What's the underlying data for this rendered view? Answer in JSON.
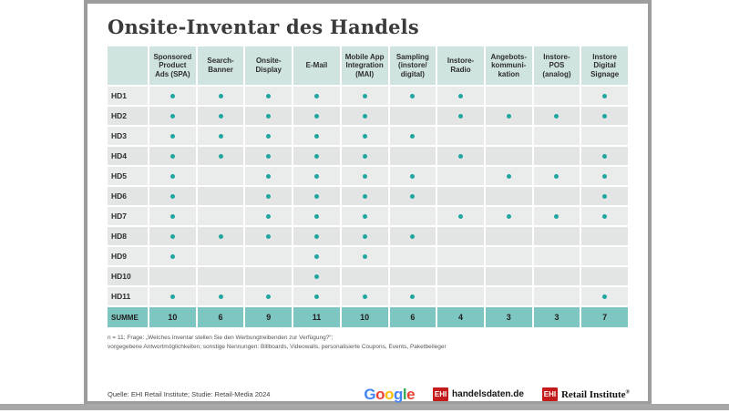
{
  "title": "Onsite-Inventar des Handels",
  "chart_data": {
    "type": "table",
    "title": "Onsite-Inventar des Handels",
    "columns": [
      "Sponsored Product Ads (SPA)",
      "Search-Banner",
      "Onsite-Display",
      "E-Mail",
      "Mobile App Integration (MAI)",
      "Sampling (instore/digital)",
      "Instore-Radio",
      "Angebotskommunikation",
      "Instore-POS (analog)",
      "Instore Digital Signage"
    ],
    "row_labels": [
      "HD1",
      "HD2",
      "HD3",
      "HD4",
      "HD5",
      "HD6",
      "HD7",
      "HD8",
      "HD9",
      "HD10",
      "HD11"
    ],
    "matrix": [
      [
        1,
        1,
        1,
        1,
        1,
        1,
        1,
        0,
        0,
        1
      ],
      [
        1,
        1,
        1,
        1,
        1,
        0,
        1,
        1,
        1,
        1
      ],
      [
        1,
        1,
        1,
        1,
        1,
        1,
        0,
        0,
        0,
        0
      ],
      [
        1,
        1,
        1,
        1,
        1,
        0,
        1,
        0,
        0,
        1
      ],
      [
        1,
        0,
        1,
        1,
        1,
        1,
        0,
        1,
        1,
        1
      ],
      [
        1,
        0,
        1,
        1,
        1,
        1,
        0,
        0,
        0,
        1
      ],
      [
        1,
        0,
        1,
        1,
        1,
        0,
        1,
        1,
        1,
        1
      ],
      [
        1,
        1,
        1,
        1,
        1,
        1,
        0,
        0,
        0,
        0
      ],
      [
        1,
        0,
        0,
        1,
        1,
        0,
        0,
        0,
        0,
        0
      ],
      [
        0,
        0,
        0,
        1,
        0,
        0,
        0,
        0,
        0,
        0
      ],
      [
        1,
        1,
        1,
        1,
        1,
        1,
        0,
        0,
        0,
        1
      ]
    ],
    "totals_label": "SUMME",
    "totals": [
      10,
      6,
      9,
      11,
      10,
      6,
      4,
      3,
      3,
      7
    ]
  },
  "table": {
    "header_lines": [
      "Sponsored\nProduct\nAds (SPA)",
      "Search-\nBanner",
      "Onsite-\nDisplay",
      "E-Mail",
      "Mobile App\nIntegration\n(MAI)",
      "Sampling\n(instore/\ndigital)",
      "Instore-\nRadio",
      "Angebots-\nkommuni-\nkation",
      "Instore-\nPOS\n(analog)",
      "Instore\nDigital\nSignage"
    ]
  },
  "footnote": {
    "line1": "n = 11; Frage: „Welches Inventar stellen Sie den Werbungtreibenden zur Verfügung?“;",
    "line2": "vorgegebene Antwortmöglichkeiten; sonstige Nennungen: Billboards, Videowalls, personalisierte Coupons, Events, Paketbeileger"
  },
  "source": "Quelle: EHI Retail Institute; Studie: Retail-Media 2024",
  "logos": {
    "google": [
      {
        "c": "G",
        "color": "#4285F4"
      },
      {
        "c": "o",
        "color": "#EA4335"
      },
      {
        "c": "o",
        "color": "#FBBC05"
      },
      {
        "c": "g",
        "color": "#4285F4"
      },
      {
        "c": "l",
        "color": "#34A853"
      },
      {
        "c": "e",
        "color": "#EA4335"
      }
    ],
    "ehi_short": "EHI",
    "handelsdaten_label": "handelsdaten.de",
    "retail_institute_label": "Retail Institute",
    "registered_mark": "®"
  },
  "colors": {
    "dot": "#1ea69f",
    "header_bg": "#cfe3e1",
    "summe_bg": "#7ec6c1",
    "row_odd": "#eaebeb",
    "row_even": "#e3e5e5",
    "ehi_red": "#c41a1b",
    "card_border": "#9d9d9d"
  }
}
